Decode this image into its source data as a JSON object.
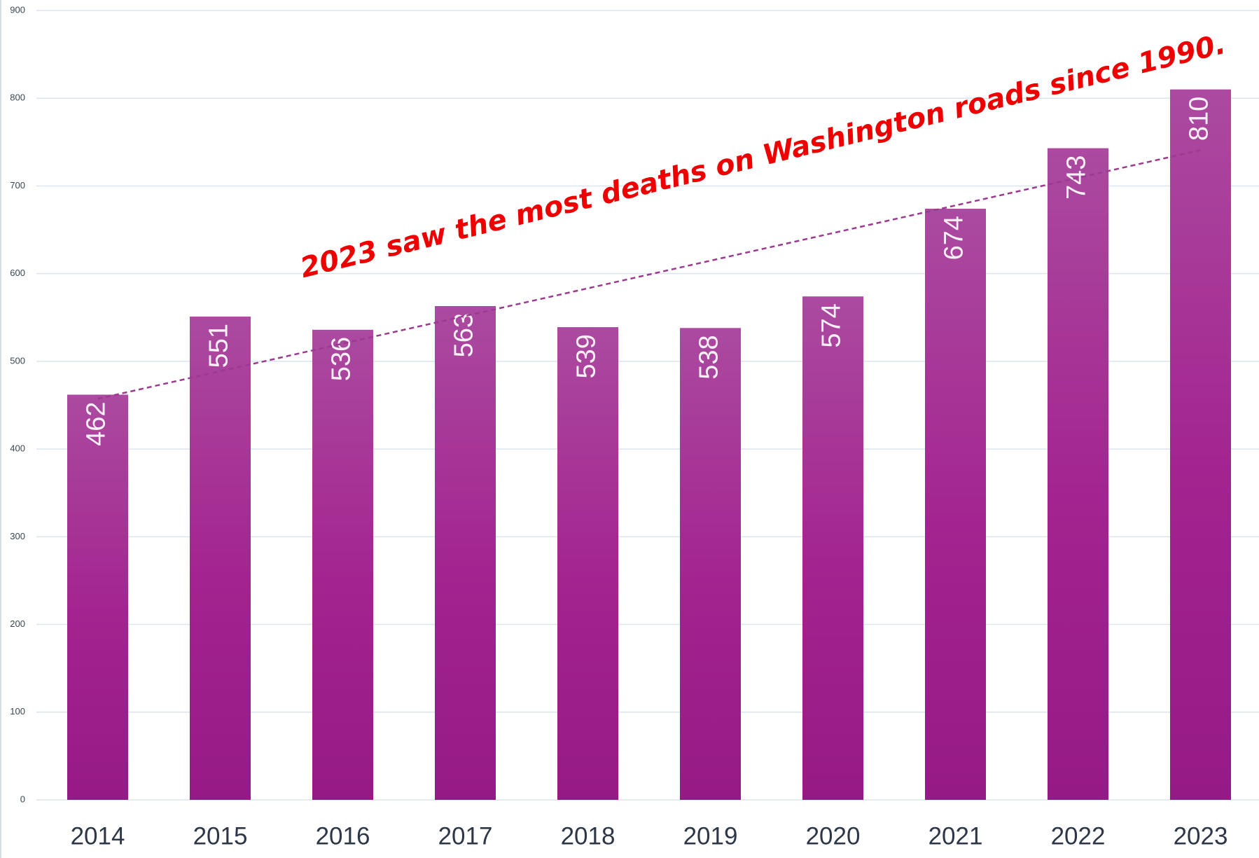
{
  "chart_data": {
    "type": "bar",
    "categories": [
      "2014",
      "2015",
      "2016",
      "2017",
      "2018",
      "2019",
      "2020",
      "2021",
      "2022",
      "2023"
    ],
    "values": [
      462,
      551,
      536,
      563,
      539,
      538,
      574,
      674,
      743,
      810
    ],
    "color": "#a3238f",
    "ylim": [
      0,
      900
    ],
    "yticks": [
      0,
      100,
      200,
      300,
      400,
      500,
      600,
      700,
      800,
      900
    ],
    "grid": true,
    "trendline": true,
    "trendline_color": "#9b3a8f",
    "annotation": "2023 saw the most deaths on Washington roads since 1990.",
    "annotation_color": "#ee0000"
  }
}
